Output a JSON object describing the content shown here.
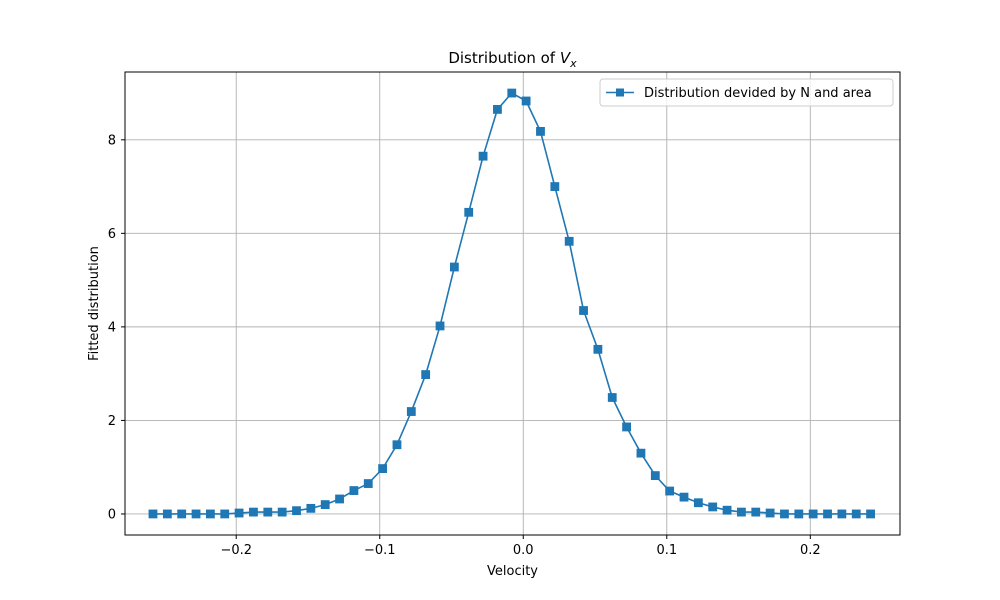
{
  "chart_data": {
    "type": "line",
    "title": "Distribution of V_x",
    "title_main": "Distribution of ",
    "title_var": "V",
    "title_sub": "x",
    "xlabel": "Velocity",
    "ylabel": "Fitted distribution",
    "xlim": [
      -0.2775,
      0.2625
    ],
    "ylim": [
      -0.45,
      9.45
    ],
    "xticks": [
      -0.2,
      -0.1,
      0.0,
      0.1,
      0.2
    ],
    "xtick_labels": [
      "−0.2",
      "−0.1",
      "0.0",
      "0.1",
      "0.2"
    ],
    "yticks": [
      0,
      2,
      4,
      6,
      8
    ],
    "ytick_labels": [
      "0",
      "2",
      "4",
      "6",
      "8"
    ],
    "grid": true,
    "legend_position": "top-right",
    "series": [
      {
        "name": "Distribution devided by N and area",
        "color": "#1f77b4",
        "marker": "square",
        "x": [
          -0.258,
          -0.248,
          -0.238,
          -0.228,
          -0.218,
          -0.208,
          -0.198,
          -0.188,
          -0.178,
          -0.168,
          -0.158,
          -0.148,
          -0.138,
          -0.128,
          -0.118,
          -0.108,
          -0.098,
          -0.088,
          -0.078,
          -0.068,
          -0.058,
          -0.048,
          -0.038,
          -0.028,
          -0.018,
          -0.008,
          0.002,
          0.012,
          0.022,
          0.032,
          0.042,
          0.052,
          0.062,
          0.072,
          0.082,
          0.092,
          0.102,
          0.112,
          0.122,
          0.132,
          0.142,
          0.152,
          0.162,
          0.172,
          0.182,
          0.192,
          0.202,
          0.212,
          0.222,
          0.232,
          0.242
        ],
        "values": [
          0.0,
          0.0,
          0.0,
          0.0,
          0.0,
          0.0,
          0.02,
          0.04,
          0.04,
          0.04,
          0.07,
          0.12,
          0.2,
          0.32,
          0.5,
          0.65,
          0.97,
          1.48,
          2.19,
          2.98,
          4.02,
          5.28,
          6.45,
          7.65,
          8.65,
          9.0,
          8.83,
          8.18,
          7.0,
          5.83,
          4.35,
          3.52,
          2.49,
          1.86,
          1.3,
          0.82,
          0.49,
          0.36,
          0.24,
          0.15,
          0.08,
          0.04,
          0.04,
          0.02,
          0.0,
          0.0,
          0.0,
          0.0,
          0.0,
          0.0,
          0.0
        ]
      }
    ]
  }
}
